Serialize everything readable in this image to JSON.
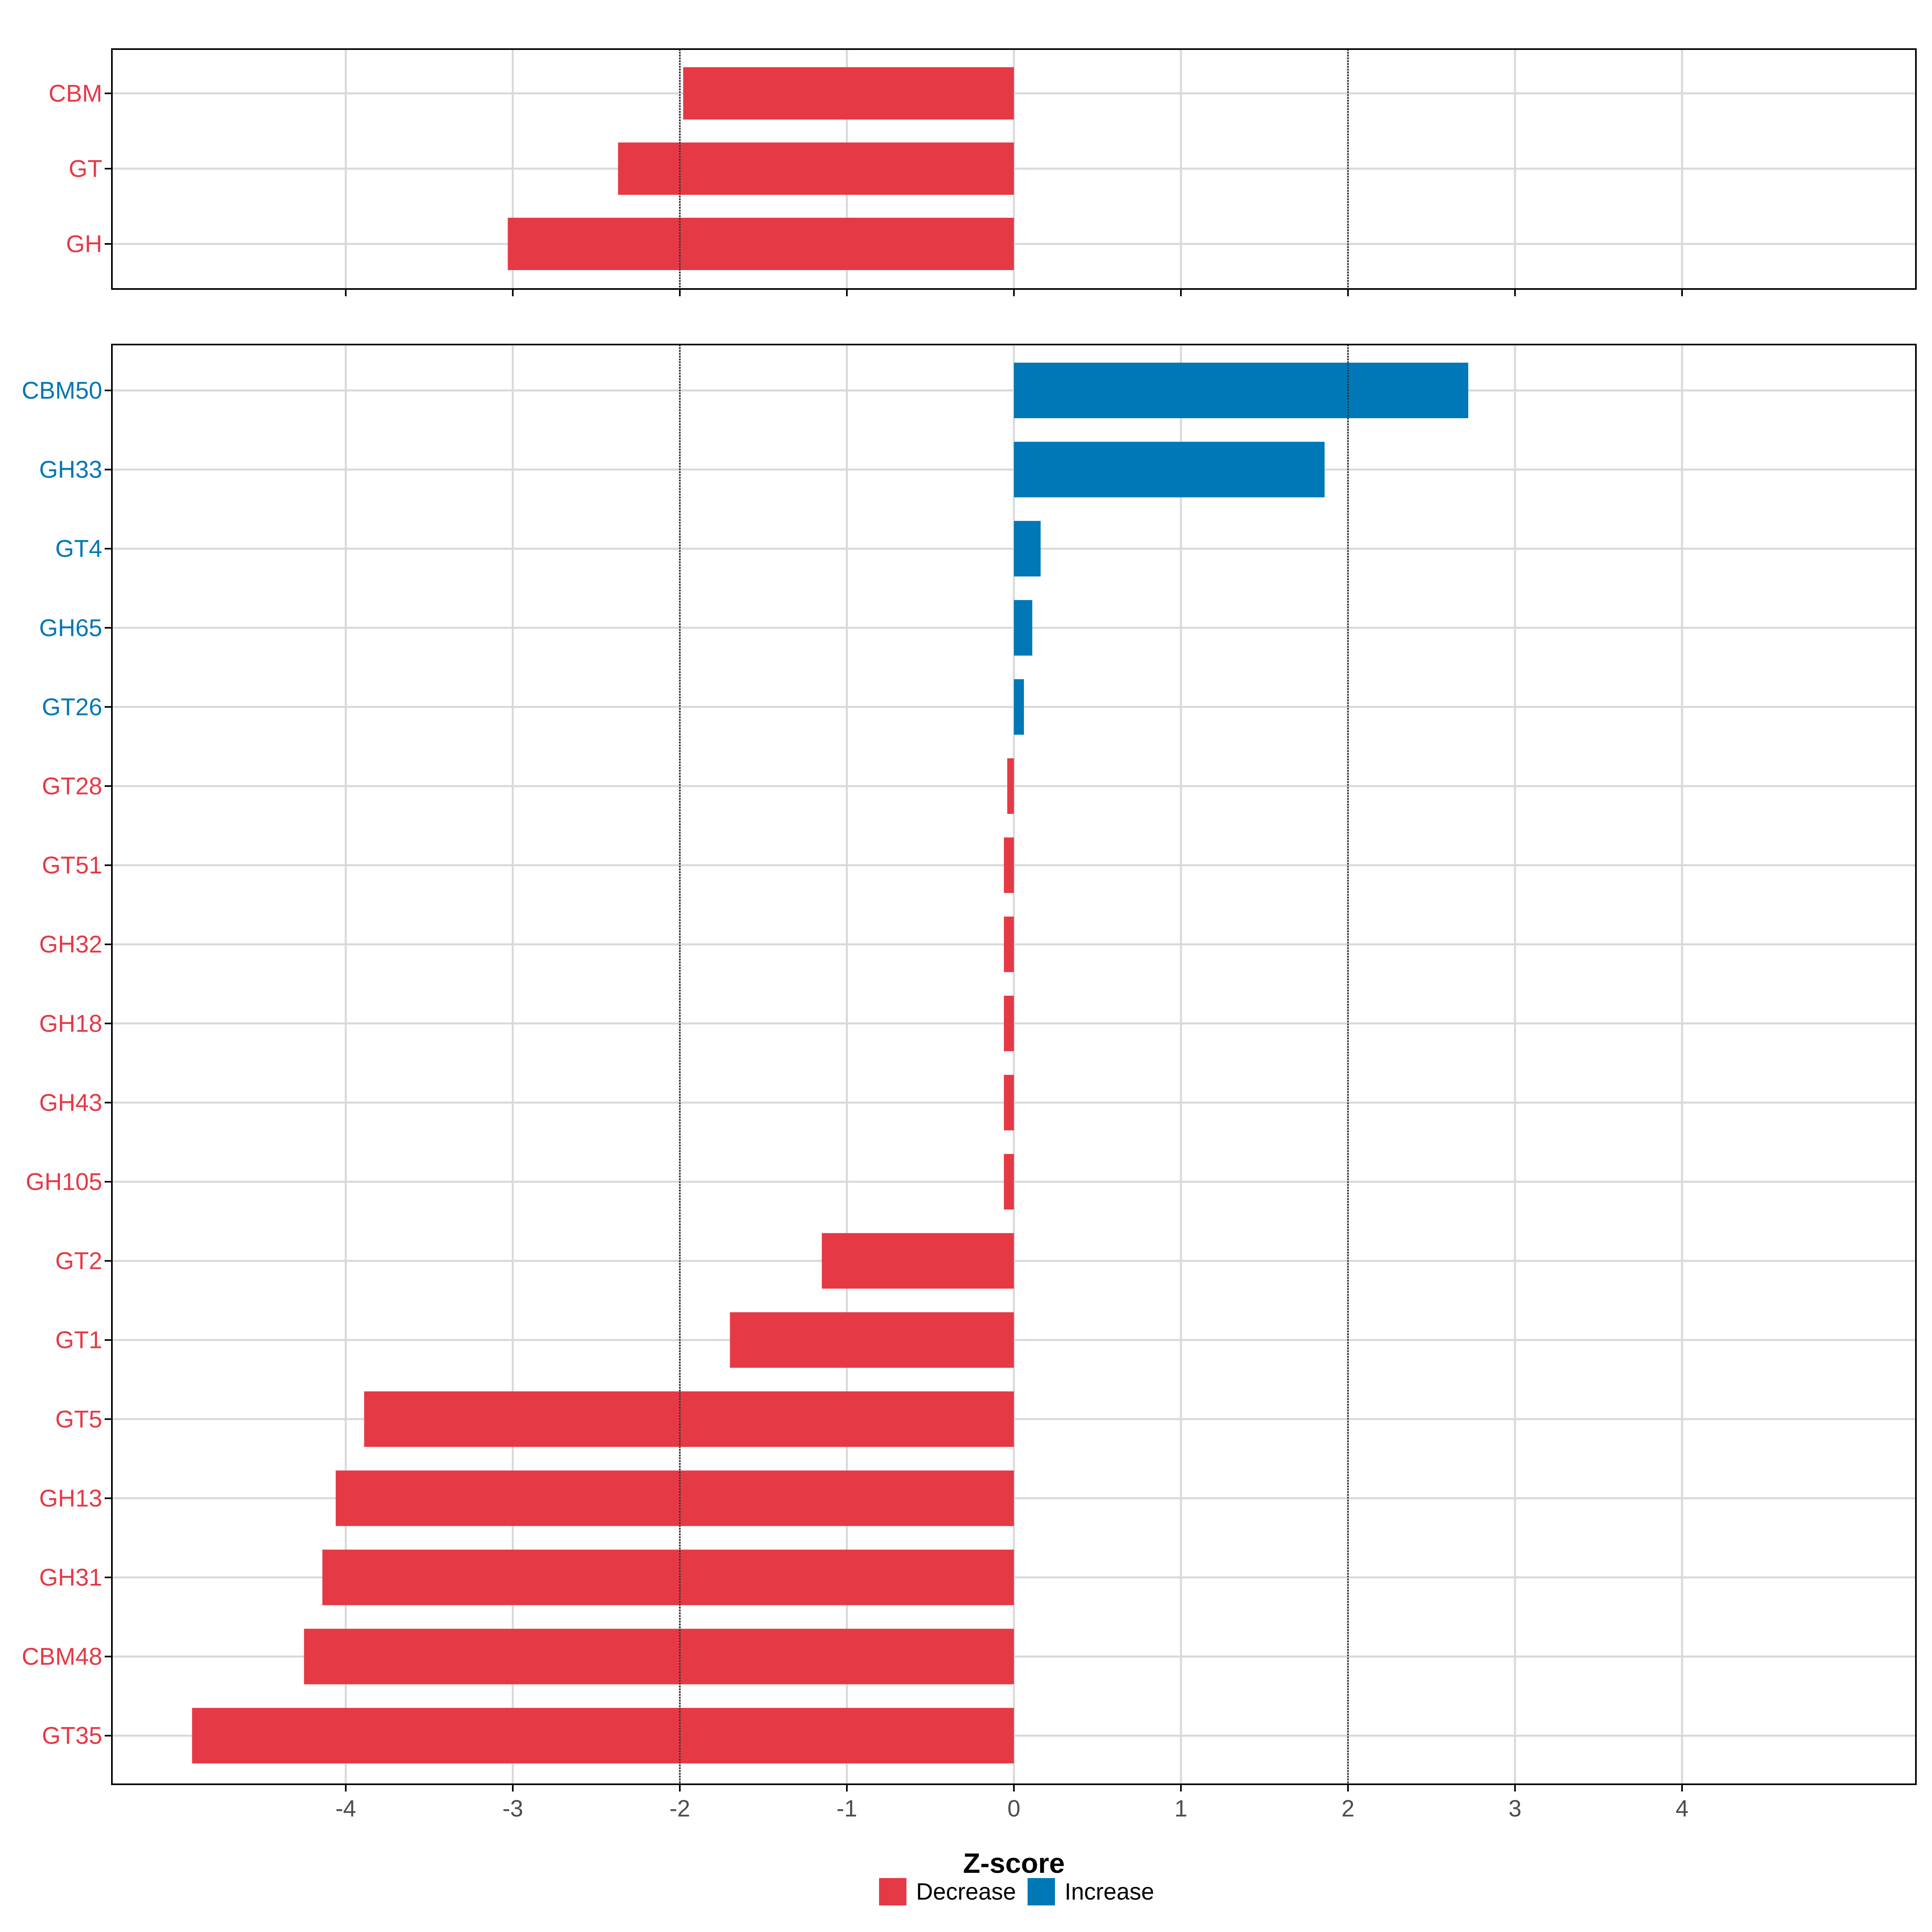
{
  "colors": {
    "decrease": "#e63946",
    "increase": "#0077b6",
    "grid": "#d9d9d9",
    "threshold": "#333333",
    "axis_text": "#4d4d4d",
    "frame": "#000000"
  },
  "chart_data": [
    {
      "type": "bar",
      "orientation": "horizontal",
      "panel": "top",
      "categories": [
        "CBM",
        "GT",
        "GH"
      ],
      "values": [
        -1.98,
        -2.37,
        -3.03
      ],
      "directions": [
        "Decrease",
        "Decrease",
        "Decrease"
      ],
      "xlim": [
        -5.4,
        5.4
      ],
      "xticks": [
        -4,
        -3,
        -2,
        -1,
        0,
        1,
        2,
        3,
        4
      ],
      "reference_lines": [
        -2,
        2
      ],
      "grid": true
    },
    {
      "type": "bar",
      "orientation": "horizontal",
      "panel": "bottom",
      "categories": [
        "CBM50",
        "GH33",
        "GT4",
        "GH65",
        "GT26",
        "GT28",
        "GT51",
        "GH32",
        "GH18",
        "GH43",
        "GH105",
        "GT2",
        "GT1",
        "GT5",
        "GH13",
        "GH31",
        "CBM48",
        "GT35"
      ],
      "values": [
        2.72,
        1.86,
        0.16,
        0.11,
        0.06,
        -0.04,
        -0.06,
        -0.06,
        -0.06,
        -0.06,
        -0.06,
        -1.15,
        -1.7,
        -3.89,
        -4.06,
        -4.14,
        -4.25,
        -4.92
      ],
      "directions": [
        "Increase",
        "Increase",
        "Increase",
        "Increase",
        "Increase",
        "Decrease",
        "Decrease",
        "Decrease",
        "Decrease",
        "Decrease",
        "Decrease",
        "Decrease",
        "Decrease",
        "Decrease",
        "Decrease",
        "Decrease",
        "Decrease",
        "Decrease"
      ],
      "xlim": [
        -5.4,
        5.4
      ],
      "xticks": [
        -4,
        -3,
        -2,
        -1,
        0,
        1,
        2,
        3,
        4
      ],
      "xtick_labels": [
        "-4",
        "-3",
        "-2",
        "-1",
        "0",
        "1",
        "2",
        "3",
        "4"
      ],
      "reference_lines": [
        -2,
        2
      ],
      "xlabel": "Z-score",
      "grid": true
    }
  ],
  "legend": {
    "position": "bottom",
    "items": [
      {
        "label": "Decrease",
        "color_key": "decrease"
      },
      {
        "label": "Increase",
        "color_key": "increase"
      }
    ]
  }
}
